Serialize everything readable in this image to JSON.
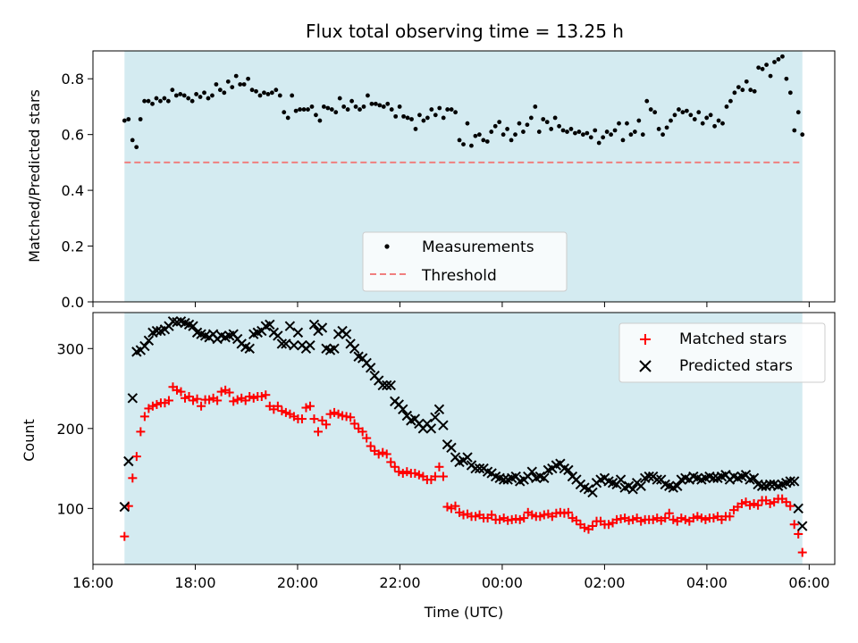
{
  "chart_data": [
    {
      "type": "scatter",
      "title": "Flux total observing time = 13.25 h",
      "xlabel": "",
      "ylabel": "Matched/Predicted stars",
      "ylim": [
        0.0,
        0.9
      ],
      "yticks": [
        "0.0",
        "0.2",
        "0.4",
        "0.6",
        "0.8"
      ],
      "observing_window": {
        "start": "16:37",
        "end": "05:52",
        "color": "#d4ebf1"
      },
      "legend": {
        "placement": "lower-center",
        "items": [
          "Measurements",
          "Threshold"
        ]
      },
      "threshold": {
        "name": "Threshold",
        "value": 0.5,
        "color": "#f07f7f",
        "style": "dashed"
      },
      "series": [
        {
          "name": "Measurements",
          "color": "#000000",
          "marker": "dot",
          "x_start": "16:37",
          "x_end": "05:52",
          "values": [
            0.65,
            0.655,
            0.58,
            0.555,
            0.655,
            0.72,
            0.72,
            0.71,
            0.73,
            0.72,
            0.73,
            0.72,
            0.76,
            0.74,
            0.745,
            0.74,
            0.73,
            0.72,
            0.745,
            0.735,
            0.75,
            0.73,
            0.74,
            0.78,
            0.76,
            0.75,
            0.79,
            0.77,
            0.81,
            0.78,
            0.78,
            0.8,
            0.76,
            0.755,
            0.74,
            0.75,
            0.745,
            0.75,
            0.76,
            0.74,
            0.68,
            0.66,
            0.74,
            0.685,
            0.69,
            0.69,
            0.69,
            0.7,
            0.67,
            0.65,
            0.7,
            0.695,
            0.69,
            0.68,
            0.73,
            0.7,
            0.69,
            0.72,
            0.7,
            0.69,
            0.7,
            0.74,
            0.71,
            0.71,
            0.705,
            0.7,
            0.71,
            0.69,
            0.665,
            0.7,
            0.665,
            0.66,
            0.655,
            0.62,
            0.67,
            0.65,
            0.66,
            0.69,
            0.67,
            0.695,
            0.66,
            0.69,
            0.69,
            0.68,
            0.58,
            0.565,
            0.64,
            0.56,
            0.595,
            0.6,
            0.58,
            0.575,
            0.61,
            0.63,
            0.645,
            0.6,
            0.62,
            0.58,
            0.6,
            0.64,
            0.61,
            0.635,
            0.66,
            0.7,
            0.61,
            0.655,
            0.645,
            0.62,
            0.66,
            0.63,
            0.615,
            0.61,
            0.62,
            0.605,
            0.61,
            0.6,
            0.605,
            0.59,
            0.615,
            0.57,
            0.59,
            0.61,
            0.6,
            0.615,
            0.64,
            0.58,
            0.64,
            0.6,
            0.61,
            0.65,
            0.6,
            0.72,
            0.69,
            0.68,
            0.62,
            0.6,
            0.625,
            0.65,
            0.67,
            0.69,
            0.68,
            0.685,
            0.67,
            0.655,
            0.68,
            0.64,
            0.66,
            0.67,
            0.63,
            0.65,
            0.64,
            0.7,
            0.72,
            0.75,
            0.77,
            0.76,
            0.79,
            0.76,
            0.755,
            0.84,
            0.835,
            0.85,
            0.81,
            0.86,
            0.87,
            0.88,
            0.8,
            0.75,
            0.615,
            0.68,
            0.6
          ]
        }
      ]
    },
    {
      "type": "scatter",
      "title": "",
      "xlabel": "Time (UTC)",
      "ylabel": "Count",
      "ylim": [
        30,
        345
      ],
      "xlim": [
        "16:00",
        "06:30"
      ],
      "xticks": [
        "16:00",
        "18:00",
        "20:00",
        "22:00",
        "00:00",
        "02:00",
        "04:00",
        "06:00"
      ],
      "yticks": [
        "100",
        "200",
        "300"
      ],
      "observing_window": {
        "start": "16:37",
        "end": "05:52",
        "color": "#d4ebf1"
      },
      "legend": {
        "placement": "top-right",
        "items": [
          "Matched stars",
          "Predicted stars"
        ]
      },
      "series": [
        {
          "name": "Matched stars",
          "color": "#ff0000",
          "marker": "plus",
          "x_start": "16:37",
          "x_end": "05:52",
          "values": [
            65,
            103,
            138,
            165,
            196,
            215,
            225,
            228,
            230,
            232,
            232,
            235,
            252,
            248,
            246,
            238,
            240,
            235,
            237,
            228,
            236,
            236,
            238,
            235,
            246,
            248,
            245,
            234,
            236,
            238,
            235,
            240,
            238,
            240,
            240,
            242,
            228,
            224,
            228,
            222,
            220,
            218,
            215,
            212,
            212,
            226,
            228,
            212,
            196,
            210,
            205,
            218,
            220,
            218,
            216,
            215,
            214,
            206,
            200,
            196,
            188,
            178,
            172,
            168,
            170,
            168,
            158,
            152,
            146,
            144,
            146,
            144,
            144,
            142,
            140,
            136,
            136,
            140,
            152,
            140,
            102,
            100,
            103,
            95,
            92,
            93,
            90,
            90,
            92,
            88,
            88,
            92,
            86,
            86,
            88,
            85,
            86,
            87,
            86,
            88,
            95,
            92,
            90,
            90,
            92,
            93,
            90,
            94,
            95,
            94,
            95,
            88,
            85,
            80,
            76,
            74,
            78,
            84,
            84,
            80,
            80,
            82,
            86,
            87,
            88,
            85,
            86,
            88,
            84,
            86,
            86,
            86,
            88,
            85,
            88,
            94,
            86,
            84,
            88,
            86,
            84,
            88,
            90,
            88,
            86,
            88,
            88,
            90,
            86,
            90,
            90,
            98,
            102,
            106,
            108,
            104,
            106,
            104,
            110,
            110,
            106,
            108,
            112,
            112,
            108,
            103,
            80,
            68,
            45
          ]
        },
        {
          "name": "Predicted stars",
          "color": "#000000",
          "marker": "x",
          "x_start": "16:37",
          "x_end": "05:52",
          "values": [
            102,
            159,
            238,
            296,
            298,
            303,
            310,
            320,
            322,
            322,
            324,
            328,
            334,
            333,
            334,
            332,
            330,
            328,
            320,
            318,
            316,
            314,
            318,
            312,
            316,
            314,
            316,
            318,
            312,
            306,
            302,
            300,
            318,
            320,
            322,
            328,
            330,
            320,
            316,
            306,
            306,
            328,
            304,
            320,
            304,
            300,
            304,
            330,
            322,
            326,
            300,
            298,
            300,
            318,
            322,
            318,
            306,
            300,
            290,
            288,
            282,
            276,
            266,
            260,
            254,
            254,
            254,
            234,
            230,
            224,
            216,
            210,
            212,
            206,
            200,
            206,
            200,
            214,
            224,
            204,
            180,
            176,
            164,
            158,
            160,
            164,
            154,
            150,
            150,
            150,
            146,
            144,
            140,
            138,
            136,
            136,
            138,
            140,
            134,
            136,
            140,
            146,
            138,
            140,
            138,
            148,
            150,
            154,
            156,
            150,
            148,
            140,
            136,
            130,
            126,
            124,
            120,
            132,
            136,
            138,
            134,
            132,
            130,
            136,
            126,
            128,
            124,
            132,
            128,
            138,
            140,
            140,
            136,
            136,
            130,
            128,
            126,
            128,
            136,
            138,
            136,
            140,
            138,
            136,
            138,
            140,
            138,
            138,
            140,
            142,
            136,
            140,
            138,
            140,
            142,
            136,
            138,
            130,
            128,
            128,
            130,
            130,
            128,
            130,
            132,
            134,
            134,
            100,
            78
          ]
        }
      ]
    }
  ]
}
